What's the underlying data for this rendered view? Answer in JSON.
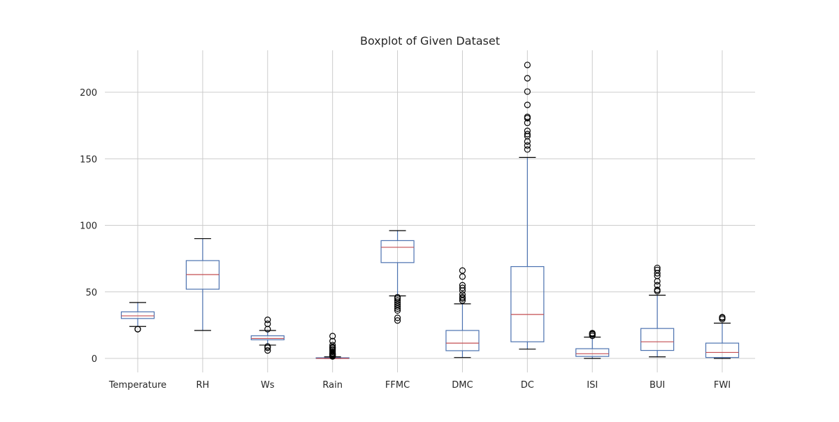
{
  "chart_data": {
    "type": "boxplot",
    "title": "Boxplot of Given Dataset",
    "xlabel": "",
    "ylabel": "",
    "ylim": [
      -10,
      230
    ],
    "yticks": [
      0,
      50,
      100,
      150,
      200
    ],
    "grid": true,
    "categories": [
      "Temperature",
      "RH",
      "Ws",
      "Rain",
      "FFMC",
      "DMC",
      "DC",
      "ISI",
      "BUI",
      "FWI"
    ],
    "boxes": [
      {
        "category": "Temperature",
        "whislo": 24,
        "q1": 30,
        "med": 32,
        "q3": 35,
        "whishi": 42,
        "fliers": [
          22,
          22
        ]
      },
      {
        "category": "RH",
        "whislo": 21,
        "q1": 52,
        "med": 63,
        "q3": 73.5,
        "whishi": 90,
        "fliers": []
      },
      {
        "category": "Ws",
        "whislo": 10,
        "q1": 14,
        "med": 15,
        "q3": 17,
        "whishi": 21,
        "fliers": [
          6,
          8,
          9,
          22,
          26,
          29
        ]
      },
      {
        "category": "Rain",
        "whislo": 0,
        "q1": 0,
        "med": 0,
        "q3": 0.5,
        "whishi": 1.2,
        "fliers": [
          1.5,
          2,
          2.5,
          3,
          3.5,
          4,
          5,
          6,
          7,
          8,
          8.5,
          10,
          13,
          16.8
        ]
      },
      {
        "category": "FFMC",
        "whislo": 47,
        "q1": 72,
        "med": 83.5,
        "q3": 88.5,
        "whishi": 96,
        "fliers": [
          28.5,
          30.5,
          36,
          37.5,
          39,
          40.5,
          42,
          43.5,
          45,
          46
        ]
      },
      {
        "category": "DMC",
        "whislo": 0.7,
        "q1": 5.8,
        "med": 11.5,
        "q3": 21,
        "whishi": 41,
        "fliers": [
          43.5,
          45,
          46,
          48,
          51,
          53,
          55,
          61.5,
          66
        ]
      },
      {
        "category": "DC",
        "whislo": 7,
        "q1": 12.5,
        "med": 33,
        "q3": 69,
        "whishi": 151,
        "fliers": [
          157,
          160,
          163,
          167,
          168.5,
          171,
          177,
          180.5,
          181.5,
          190.5,
          200.5,
          210.5,
          220.5
        ]
      },
      {
        "category": "ISI",
        "whislo": 0,
        "q1": 1.5,
        "med": 3.5,
        "q3": 7.3,
        "whishi": 16,
        "fliers": [
          17,
          18,
          18.5,
          19
        ]
      },
      {
        "category": "BUI",
        "whislo": 1.2,
        "q1": 6,
        "med": 12.5,
        "q3": 22.5,
        "whishi": 47.5,
        "fliers": [
          50.5,
          51.5,
          55,
          58,
          62,
          64,
          66.5,
          68
        ]
      },
      {
        "category": "FWI",
        "whislo": 0,
        "q1": 0.7,
        "med": 4.5,
        "q3": 11.5,
        "whishi": 26.5,
        "fliers": [
          29.5,
          30.5,
          31
        ]
      }
    ]
  }
}
